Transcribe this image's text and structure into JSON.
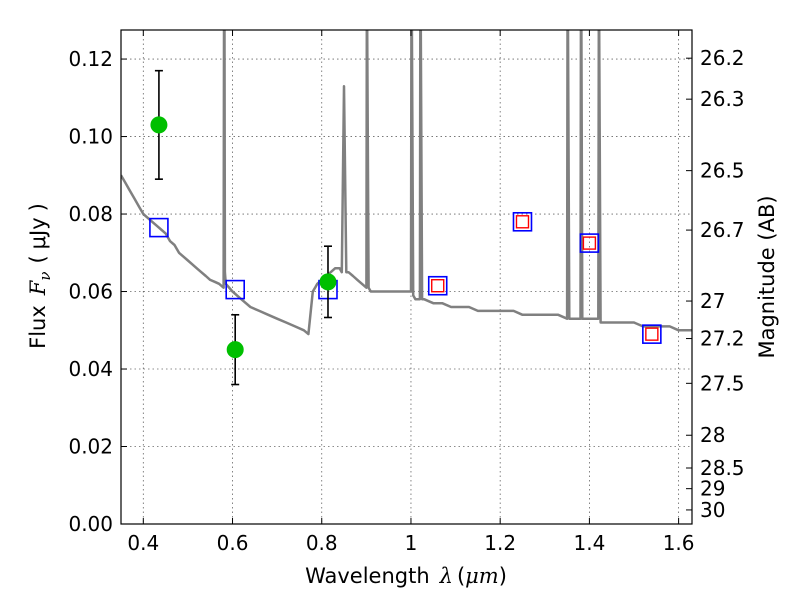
{
  "chart_data": {
    "type": "scatter",
    "xlabel": "Wavelength",
    "xlabel_symbol": "λ",
    "xlabel_unit": "μm",
    "ylabel": "Flux",
    "ylabel_symbol": "F",
    "ylabel_subscript": "ν",
    "ylabel_unit": "μJy",
    "y2label": "Magnitude (AB)",
    "xlim": [
      0.35,
      1.63
    ],
    "ylim": [
      0.0,
      0.1275
    ],
    "grid": true,
    "xticks": [
      0.4,
      0.6,
      0.8,
      1.0,
      1.2,
      1.4,
      1.6
    ],
    "xtick_labels": [
      "0.4",
      "0.6",
      "0.8",
      "1",
      "1.2",
      "1.4",
      "1.6"
    ],
    "yticks": [
      0.0,
      0.02,
      0.04,
      0.06,
      0.08,
      0.1,
      0.12
    ],
    "ytick_labels": [
      "0.00",
      "0.02",
      "0.04",
      "0.06",
      "0.08",
      "0.10",
      "0.12"
    ],
    "mag_ticks": [
      26.2,
      26.3,
      26.5,
      26.7,
      27,
      27.2,
      27.5,
      28,
      28.5,
      29,
      30
    ],
    "mag_tick_labels": [
      "26.2",
      "26.3",
      "26.5",
      "26.7",
      "27",
      "27.2",
      "27.5",
      "28",
      "28.5",
      "29",
      "30"
    ],
    "colors": {
      "model": "#808080",
      "observed": "#00bf00",
      "model_box": "#0000ff",
      "predicted": "#ff0000",
      "errorbar": "#000000"
    },
    "observed": {
      "x": [
        0.435,
        0.606,
        0.814
      ],
      "y": [
        0.103,
        0.045,
        0.0625
      ],
      "yerr": [
        0.014,
        0.009,
        0.0092
      ]
    },
    "model_bands": {
      "x": [
        0.435,
        0.606,
        0.814,
        1.06,
        1.25,
        1.4,
        1.54
      ],
      "y": [
        0.0765,
        0.0605,
        0.0605,
        0.0615,
        0.078,
        0.0725,
        0.049
      ]
    },
    "predicted": {
      "x": [
        1.06,
        1.25,
        1.4,
        1.54
      ],
      "y": [
        0.0615,
        0.078,
        0.0725,
        0.049
      ]
    },
    "model_spectrum": {
      "x": [
        0.35,
        0.36,
        0.37,
        0.38,
        0.39,
        0.4,
        0.41,
        0.42,
        0.43,
        0.44,
        0.45,
        0.46,
        0.47,
        0.48,
        0.49,
        0.5,
        0.51,
        0.52,
        0.53,
        0.54,
        0.55,
        0.56,
        0.57,
        0.58,
        0.581,
        0.582,
        0.583,
        0.585,
        0.6,
        0.62,
        0.64,
        0.66,
        0.68,
        0.7,
        0.72,
        0.74,
        0.76,
        0.77,
        0.78,
        0.785,
        0.79,
        0.8,
        0.81,
        0.82,
        0.83,
        0.84,
        0.845,
        0.85,
        0.855,
        0.86,
        0.87,
        0.88,
        0.89,
        0.9,
        0.901,
        0.902,
        0.905,
        0.91,
        0.92,
        0.94,
        0.96,
        0.98,
        0.99,
        1.0,
        1.001,
        1.002,
        1.005,
        1.01,
        1.02,
        1.021,
        1.022,
        1.025,
        1.03,
        1.05,
        1.07,
        1.09,
        1.11,
        1.13,
        1.15,
        1.17,
        1.19,
        1.21,
        1.23,
        1.25,
        1.27,
        1.29,
        1.31,
        1.33,
        1.35,
        1.351,
        1.352,
        1.355,
        1.36,
        1.37,
        1.38,
        1.381,
        1.382,
        1.384,
        1.39,
        1.4,
        1.41,
        1.42,
        1.421,
        1.422,
        1.425,
        1.44,
        1.46,
        1.48,
        1.5,
        1.52,
        1.54,
        1.56,
        1.58,
        1.6,
        1.62,
        1.63
      ],
      "y": [
        0.09,
        0.088,
        0.086,
        0.084,
        0.082,
        0.08,
        0.079,
        0.078,
        0.077,
        0.076,
        0.075,
        0.073,
        0.072,
        0.07,
        0.069,
        0.068,
        0.067,
        0.066,
        0.065,
        0.064,
        0.063,
        0.0625,
        0.062,
        0.061,
        0.128,
        0.128,
        0.065,
        0.062,
        0.06,
        0.058,
        0.056,
        0.055,
        0.054,
        0.053,
        0.052,
        0.051,
        0.05,
        0.049,
        0.06,
        0.061,
        0.062,
        0.063,
        0.064,
        0.065,
        0.066,
        0.066,
        0.065,
        0.113,
        0.065,
        0.065,
        0.064,
        0.063,
        0.062,
        0.061,
        0.128,
        0.128,
        0.061,
        0.06,
        0.06,
        0.06,
        0.06,
        0.06,
        0.06,
        0.06,
        0.128,
        0.128,
        0.059,
        0.058,
        0.058,
        0.128,
        0.128,
        0.058,
        0.058,
        0.057,
        0.057,
        0.056,
        0.056,
        0.056,
        0.055,
        0.055,
        0.055,
        0.055,
        0.055,
        0.054,
        0.054,
        0.054,
        0.054,
        0.054,
        0.053,
        0.128,
        0.128,
        0.053,
        0.053,
        0.053,
        0.053,
        0.128,
        0.128,
        0.053,
        0.053,
        0.053,
        0.053,
        0.053,
        0.128,
        0.128,
        0.052,
        0.052,
        0.052,
        0.052,
        0.052,
        0.051,
        0.051,
        0.051,
        0.051,
        0.05,
        0.05,
        0.05
      ]
    }
  }
}
